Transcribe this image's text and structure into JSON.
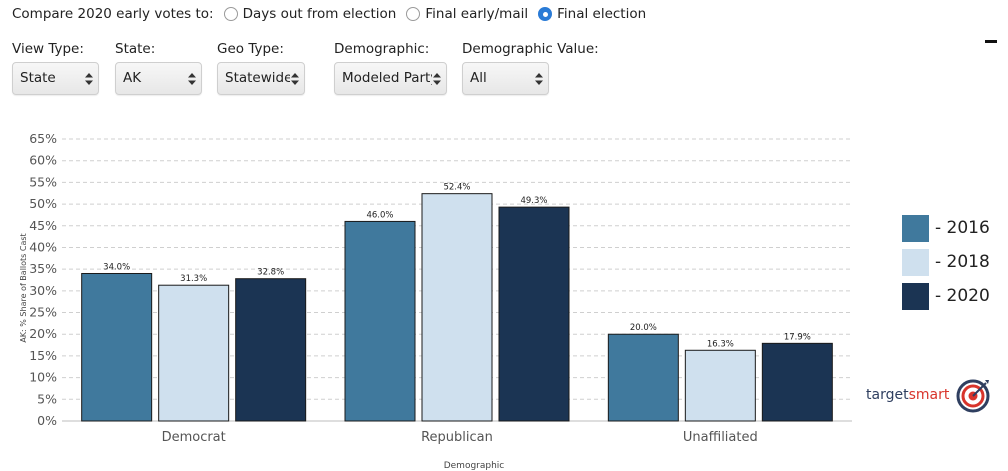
{
  "compare": {
    "label": "Compare 2020 early votes to:",
    "options": [
      {
        "label": "Days out from election",
        "checked": false
      },
      {
        "label": "Final early/mail",
        "checked": false
      },
      {
        "label": "Final election",
        "checked": true
      }
    ]
  },
  "filters": [
    {
      "label": "View Type:",
      "value": "State"
    },
    {
      "label": "State:",
      "value": "AK"
    },
    {
      "label": "Geo Type:",
      "value": "Statewide"
    },
    {
      "label": "Demographic:",
      "value": "Modeled Party"
    },
    {
      "label": "Demographic Value:",
      "value": "All"
    }
  ],
  "brand": {
    "text_main": "target",
    "text_accent": "smart",
    "icon": "target-bullseye-icon"
  },
  "icons": {
    "collapse": "minus-icon",
    "select": "up-down-arrows-icon"
  },
  "colors": {
    "2016": "#40799d",
    "2018": "#cfe0ee",
    "2020": "#1b3453",
    "accent": "#2a7bd6"
  },
  "chart_data": {
    "type": "bar",
    "categories": [
      "Democrat",
      "Republican",
      "Unaffiliated"
    ],
    "series": [
      {
        "name": "- 2016",
        "values": [
          34.0,
          46.0,
          20.0
        ],
        "labels": [
          "34.0%",
          "46.0%",
          "20.0%"
        ]
      },
      {
        "name": "- 2018",
        "values": [
          31.3,
          52.4,
          16.3
        ],
        "labels": [
          "31.3%",
          "52.4%",
          "16.3%"
        ]
      },
      {
        "name": "- 2020",
        "values": [
          32.8,
          49.3,
          17.9
        ],
        "labels": [
          "32.8%",
          "49.3%",
          "17.9%"
        ]
      }
    ],
    "xlabel": "Demographic",
    "ylabel": "AK: % Share of Ballots Cast",
    "ylim": [
      0,
      65
    ],
    "yticks": [
      "0%",
      "5%",
      "10%",
      "15%",
      "20%",
      "25%",
      "30%",
      "35%",
      "40%",
      "45%",
      "50%",
      "55%",
      "60%",
      "65%"
    ],
    "grid": true,
    "legend": "right"
  }
}
